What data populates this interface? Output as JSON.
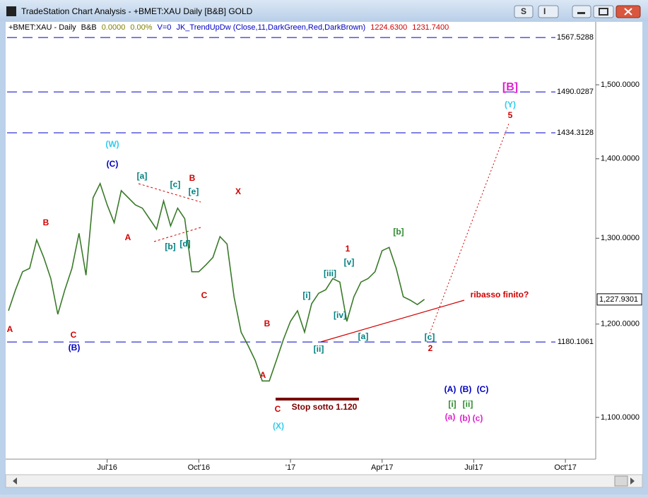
{
  "window": {
    "title": "TradeStation Chart Analysis - +BMET:XAU Daily [B&B] GOLD",
    "toolbar": [
      "S",
      "I"
    ]
  },
  "chart_data": {
    "type": "line",
    "log_scale": true,
    "grid": false,
    "header": [
      {
        "text": "+BMET:XAU - Daily",
        "color": "#000000"
      },
      {
        "text": "B&B",
        "color": "#000000"
      },
      {
        "text": "0.0000",
        "color": "#808000"
      },
      {
        "text": "0.00%",
        "color": "#808000"
      },
      {
        "text": "V=0",
        "color": "#0000c0"
      },
      {
        "text": "JK_TrendUpDw (Close,11,DarkGreen,Red,DarkBrown)",
        "color": "#0000c0"
      },
      {
        "text": "1224.6300",
        "color": "#d00000"
      },
      {
        "text": "1231.7400",
        "color": "#d00000"
      }
    ],
    "x": [
      -14,
      -13,
      -12,
      -11,
      -10,
      -9,
      -8,
      -7,
      -6,
      -5,
      -4,
      -3,
      -2,
      -1,
      0,
      1,
      2,
      3,
      4,
      5,
      6,
      7,
      8,
      9,
      10,
      11,
      12,
      13,
      14,
      15,
      16,
      17,
      18,
      19,
      20,
      21,
      22,
      23,
      24,
      25,
      26,
      27,
      28,
      29,
      30,
      31,
      32,
      33,
      34,
      35,
      36,
      37,
      38,
      39,
      40,
      41,
      42,
      43,
      44,
      45
    ],
    "series": [
      {
        "name": "+BMET:XAU",
        "color": "#3a7a2a",
        "values": [
          1215,
          1239,
          1260,
          1264,
          1298,
          1277,
          1252,
          1211,
          1239,
          1264,
          1306,
          1256,
          1350,
          1368,
          1341,
          1319,
          1359,
          1350,
          1341,
          1337,
          1324,
          1311,
          1346,
          1315,
          1337,
          1324,
          1260,
          1260,
          1268,
          1277,
          1302,
          1293,
          1231,
          1191,
          1176,
          1160,
          1138,
          1138,
          1160,
          1183,
          1203,
          1215,
          1191,
          1223,
          1235,
          1239,
          1252,
          1248,
          1203,
          1231,
          1248,
          1252,
          1260,
          1285,
          1289,
          1264,
          1231,
          1227,
          1222,
          1228
        ]
      }
    ],
    "xlim": [
      -14.2,
      69.3
    ],
    "xticks": [
      {
        "value": 0,
        "label": "Jul'16"
      },
      {
        "value": 13,
        "label": "Oct'16"
      },
      {
        "value": 26,
        "label": "'17"
      },
      {
        "value": 39,
        "label": "Apr'17"
      },
      {
        "value": 52,
        "label": "Jul17"
      },
      {
        "value": 65,
        "label": "Oct'17"
      }
    ],
    "ylim": [
      1058,
      1576
    ],
    "yticks": [
      {
        "value": 1100,
        "label": "1,100.0000"
      },
      {
        "value": 1200,
        "label": "1,200.0000"
      },
      {
        "value": 1300,
        "label": "1,300.0000"
      },
      {
        "value": 1400,
        "label": "1,400.0000"
      },
      {
        "value": 1500,
        "label": "1,500.0000"
      }
    ],
    "levels": [
      1567.5288,
      1490.0287,
      1434.3128,
      1180.1061
    ],
    "level_color": "#0000c8",
    "last_price": {
      "value": 1227.9301,
      "label": "1,227.9301"
    },
    "annotations": [
      {
        "text": "A",
        "color": "#d00000"
      },
      {
        "text": "B",
        "color": "#d00000"
      },
      {
        "text": "C",
        "color": "#d00000"
      },
      {
        "text": "(B)",
        "color": "#0000c0"
      },
      {
        "text": "(W)",
        "color": "#33ccee"
      },
      {
        "text": "(C)",
        "color": "#0000c0"
      },
      {
        "text": "A",
        "color": "#d00000"
      },
      {
        "text": "[a]",
        "color": "#008080"
      },
      {
        "text": "[c]",
        "color": "#008080"
      },
      {
        "text": "B",
        "color": "#d00000"
      },
      {
        "text": "[e]",
        "color": "#008080"
      },
      {
        "text": "[b]",
        "color": "#008080"
      },
      {
        "text": "[d]",
        "color": "#008080"
      },
      {
        "text": "X",
        "color": "#d00000"
      },
      {
        "text": "C",
        "color": "#d00000"
      },
      {
        "text": "B",
        "color": "#d00000"
      },
      {
        "text": "A",
        "color": "#d00000"
      },
      {
        "text": "C",
        "color": "#d00000"
      },
      {
        "text": "(X)",
        "color": "#33ccee"
      },
      {
        "text": "Stop sotto 1.120",
        "color": "#7a0000"
      },
      {
        "text": "[i]",
        "color": "#008080"
      },
      {
        "text": "[ii]",
        "color": "#008080"
      },
      {
        "text": "[iii]",
        "color": "#008080"
      },
      {
        "text": "[iv]",
        "color": "#008080"
      },
      {
        "text": "[v]",
        "color": "#008080"
      },
      {
        "text": "1",
        "color": "#d00000"
      },
      {
        "text": "[a]",
        "color": "#008080"
      },
      {
        "text": "[b]",
        "color": "#2e8b2e"
      },
      {
        "text": "[c]",
        "color": "#008080"
      },
      {
        "text": "2",
        "color": "#d00000"
      },
      {
        "text": "ribasso finito?",
        "color": "#d00000"
      },
      {
        "text": "[B]",
        "color": "#e020d0"
      },
      {
        "text": "(Y)",
        "color": "#33ccee"
      },
      {
        "text": "5",
        "color": "#d00000"
      },
      {
        "text": "(A)",
        "color": "#0000c0"
      },
      {
        "text": "(B)",
        "color": "#0000c0"
      },
      {
        "text": "(C)",
        "color": "#0000c0"
      },
      {
        "text": "[i]",
        "color": "#2e8b2e"
      },
      {
        "text": "[ii]",
        "color": "#2e8b2e"
      },
      {
        "text": "(a)",
        "color": "#e020d0"
      },
      {
        "text": "(b)",
        "color": "#e020d0"
      },
      {
        "text": "(c)",
        "color": "#e020d0"
      }
    ]
  }
}
